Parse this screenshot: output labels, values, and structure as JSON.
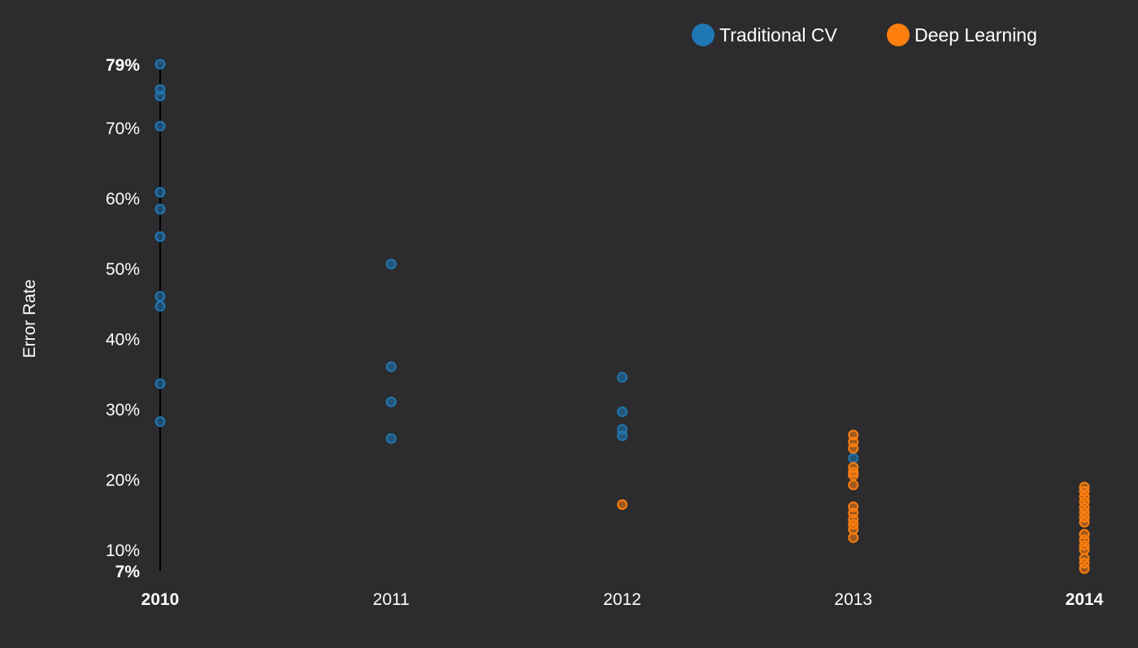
{
  "chart_data": {
    "type": "scatter",
    "title": "",
    "xlabel": "",
    "ylabel": "Error Rate",
    "x_ticks": [
      "2010",
      "2011",
      "2012",
      "2013",
      "2014"
    ],
    "x_ticks_bold": [
      "2010",
      "2014"
    ],
    "y_ticks": [
      {
        "value": 79,
        "label": "79%",
        "bold": true
      },
      {
        "value": 70,
        "label": "70%",
        "bold": false
      },
      {
        "value": 60,
        "label": "60%",
        "bold": false
      },
      {
        "value": 50,
        "label": "50%",
        "bold": false
      },
      {
        "value": 40,
        "label": "40%",
        "bold": false
      },
      {
        "value": 30,
        "label": "30%",
        "bold": false
      },
      {
        "value": 20,
        "label": "20%",
        "bold": false
      },
      {
        "value": 10,
        "label": "10%",
        "bold": false
      },
      {
        "value": 7,
        "label": "7%",
        "bold": true
      }
    ],
    "ylim": [
      7,
      79
    ],
    "grid": false,
    "legend_position": "top-right",
    "series": [
      {
        "name": "Traditional CV",
        "color": "#1f77b4",
        "points": [
          {
            "x": "2010",
            "y": 79.0
          },
          {
            "x": "2010",
            "y": 75.4
          },
          {
            "x": "2010",
            "y": 74.5
          },
          {
            "x": "2010",
            "y": 70.2
          },
          {
            "x": "2010",
            "y": 60.8
          },
          {
            "x": "2010",
            "y": 58.4
          },
          {
            "x": "2010",
            "y": 54.5
          },
          {
            "x": "2010",
            "y": 46.0
          },
          {
            "x": "2010",
            "y": 44.6
          },
          {
            "x": "2010",
            "y": 33.6
          },
          {
            "x": "2010",
            "y": 28.2
          },
          {
            "x": "2011",
            "y": 50.6
          },
          {
            "x": "2011",
            "y": 36.0
          },
          {
            "x": "2011",
            "y": 31.0
          },
          {
            "x": "2011",
            "y": 25.8
          },
          {
            "x": "2012",
            "y": 34.5
          },
          {
            "x": "2012",
            "y": 29.6
          },
          {
            "x": "2012",
            "y": 27.1
          },
          {
            "x": "2012",
            "y": 26.2
          },
          {
            "x": "2013",
            "y": 23.0
          }
        ]
      },
      {
        "name": "Deep Learning",
        "color": "#ff7f0e",
        "points": [
          {
            "x": "2012",
            "y": 16.4
          },
          {
            "x": "2013",
            "y": 26.3
          },
          {
            "x": "2013",
            "y": 25.3
          },
          {
            "x": "2013",
            "y": 24.4
          },
          {
            "x": "2013",
            "y": 21.7
          },
          {
            "x": "2013",
            "y": 21.0
          },
          {
            "x": "2013",
            "y": 20.6
          },
          {
            "x": "2013",
            "y": 19.2
          },
          {
            "x": "2013",
            "y": 16.1
          },
          {
            "x": "2013",
            "y": 15.2
          },
          {
            "x": "2013",
            "y": 14.3
          },
          {
            "x": "2013",
            "y": 13.6
          },
          {
            "x": "2013",
            "y": 12.9
          },
          {
            "x": "2013",
            "y": 11.7
          },
          {
            "x": "2014",
            "y": 18.9
          },
          {
            "x": "2014",
            "y": 18.3
          },
          {
            "x": "2014",
            "y": 17.5
          },
          {
            "x": "2014",
            "y": 16.8
          },
          {
            "x": "2014",
            "y": 16.0
          },
          {
            "x": "2014",
            "y": 15.3
          },
          {
            "x": "2014",
            "y": 14.6
          },
          {
            "x": "2014",
            "y": 13.9
          },
          {
            "x": "2014",
            "y": 12.2
          },
          {
            "x": "2014",
            "y": 11.4
          },
          {
            "x": "2014",
            "y": 10.6
          },
          {
            "x": "2014",
            "y": 10.0
          },
          {
            "x": "2014",
            "y": 8.8
          },
          {
            "x": "2014",
            "y": 8.1
          },
          {
            "x": "2014",
            "y": 7.3
          }
        ]
      }
    ]
  }
}
